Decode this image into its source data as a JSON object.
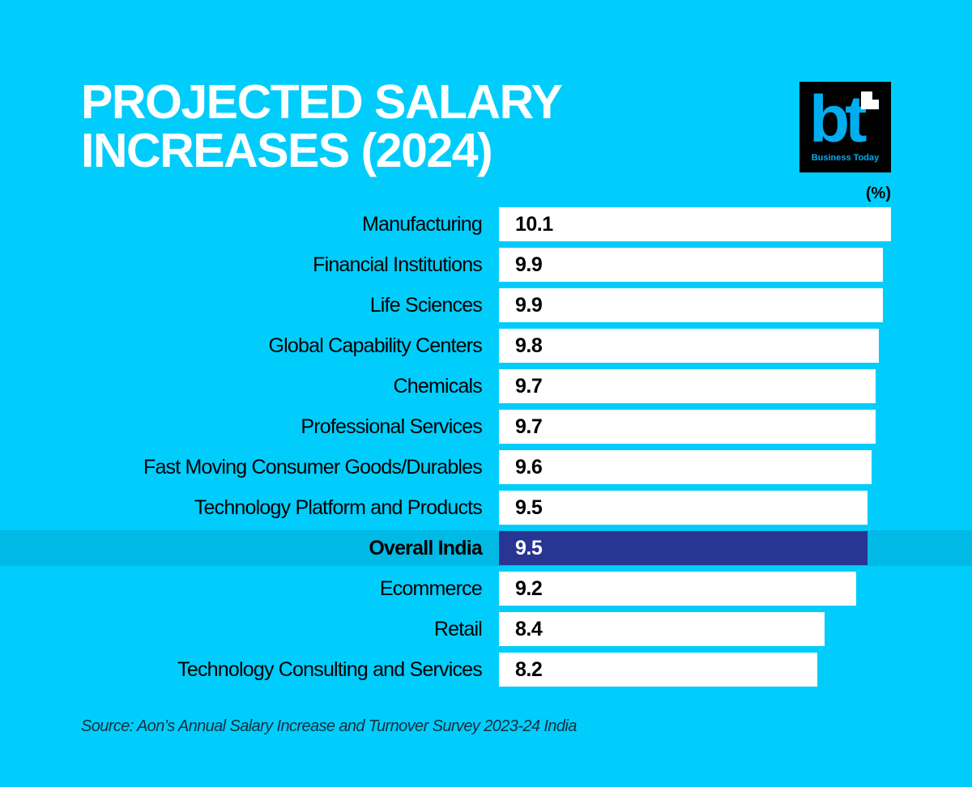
{
  "header": {
    "title_line1": "PROJECTED SALARY",
    "title_line2": "INCREASES (2024)"
  },
  "logo": {
    "mark": "bt",
    "text": "Business Today"
  },
  "colors": {
    "background": "#00cdfb",
    "bar": "#ffffff",
    "highlight_bar": "#283593",
    "highlight_band": "#00b9e4",
    "logo_blue": "#00aef0"
  },
  "chart_data": {
    "type": "bar",
    "orientation": "horizontal",
    "title": "PROJECTED SALARY INCREASES (2024)",
    "unit_label": "(%)",
    "xlabel": "",
    "ylabel": "",
    "xlim": [
      0,
      10.1
    ],
    "grid": false,
    "categories": [
      "Manufacturing",
      "Financial Institutions",
      "Life Sciences",
      "Global Capability Centers",
      "Chemicals",
      "Professional Services",
      "Fast Moving Consumer Goods/Durables",
      "Technology Platform and Products",
      "Overall India",
      "Ecommerce",
      "Retail",
      "Technology Consulting and Services"
    ],
    "values": [
      10.1,
      9.9,
      9.9,
      9.8,
      9.7,
      9.7,
      9.6,
      9.5,
      9.5,
      9.2,
      8.4,
      8.2
    ],
    "value_labels": [
      "10.1",
      "9.9",
      "9.9",
      "9.8",
      "9.7",
      "9.7",
      "9.6",
      "9.5",
      "9.5",
      "9.2",
      "8.4",
      "8.2"
    ],
    "highlight": "Overall India"
  },
  "footer": {
    "source": "Source: Aon’s Annual Salary Increase and Turnover Survey 2023-24 India"
  }
}
